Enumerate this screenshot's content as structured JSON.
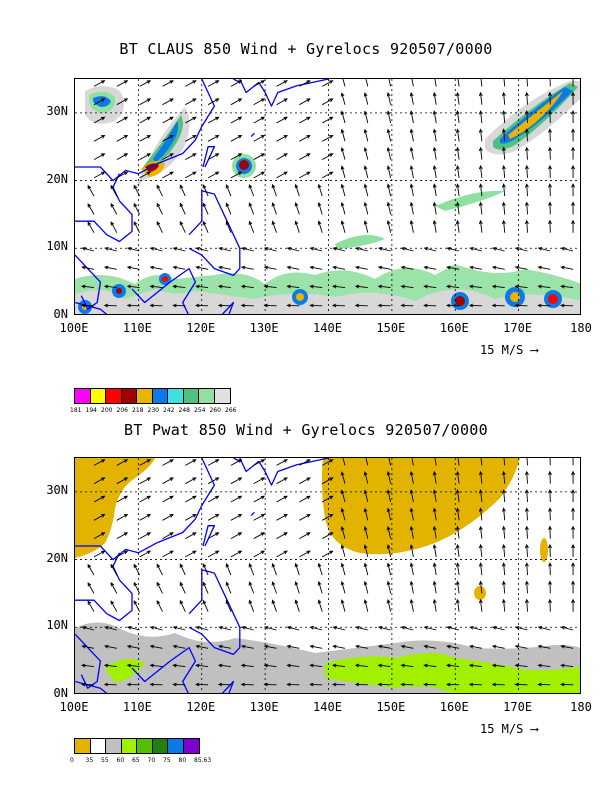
{
  "map_top": {
    "title": "BT CLAUS 850 Wind + Gyrelocs 920507/0000",
    "x_ticks": [
      "100E",
      "110E",
      "120E",
      "130E",
      "140E",
      "150E",
      "160E",
      "170E",
      "180"
    ],
    "y_ticks": [
      "30N",
      "20N",
      "10N",
      "0N"
    ],
    "lon_range": [
      100,
      180
    ],
    "lat_range": [
      0,
      35
    ],
    "scale_label": "15 M/S",
    "legend": {
      "values": [
        "181",
        "194",
        "200",
        "206",
        "218",
        "230",
        "242",
        "248",
        "254",
        "260",
        "266"
      ],
      "colors": [
        "#ff00ff",
        "#ffff00",
        "#ff0000",
        "#a00000",
        "#e8b400",
        "#0a7ae8",
        "#40e0e0",
        "#50c080",
        "#90e0a0",
        "#e0e0e0"
      ]
    }
  },
  "map_bottom": {
    "title": "BT Pwat 850 Wind + Gyrelocs 920507/0000",
    "x_ticks": [
      "100E",
      "110E",
      "120E",
      "130E",
      "140E",
      "150E",
      "160E",
      "170E",
      "180"
    ],
    "y_ticks": [
      "30N",
      "20N",
      "10N",
      "0N"
    ],
    "lon_range": [
      100,
      180
    ],
    "lat_range": [
      0,
      35
    ],
    "scale_label": "15 M/S",
    "legend": {
      "values": [
        "0",
        "35",
        "55",
        "60",
        "65",
        "70",
        "75",
        "80",
        "85.63"
      ],
      "colors": [
        "#e2b400",
        "#ffffff",
        "#c0c0c0",
        "#a0f000",
        "#50c000",
        "#208010",
        "#0a7ae8",
        "#8000d0"
      ]
    }
  },
  "colors": {
    "coastline": "#0000ff",
    "grid": "#000000"
  }
}
